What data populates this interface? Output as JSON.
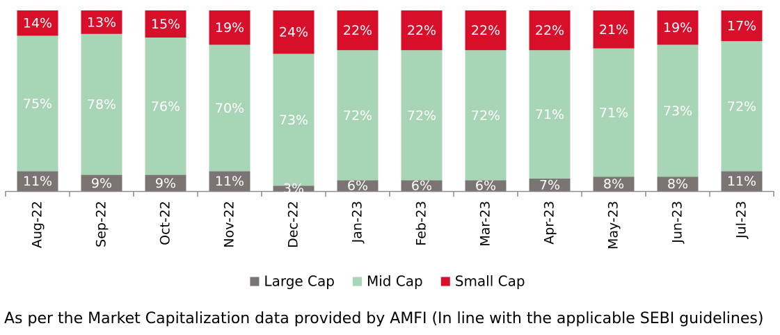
{
  "chart_data": {
    "type": "bar",
    "stacked": true,
    "categories": [
      "Aug-22",
      "Sep-22",
      "Oct-22",
      "Nov-22",
      "Dec-22",
      "Jan-23",
      "Feb-23",
      "Mar-23",
      "Apr-23",
      "May-23",
      "Jun-23",
      "Jul-23"
    ],
    "series": [
      {
        "name": "Large Cap",
        "color": "#7a7573",
        "label_color": "#ffffff",
        "values": [
          11,
          9,
          9,
          11,
          3,
          6,
          6,
          6,
          7,
          8,
          8,
          11
        ],
        "labels": [
          "11%",
          "9%",
          "9%",
          "11%",
          "3%",
          "6%",
          "6%",
          "6%",
          "7%",
          "8%",
          "8%",
          "11%"
        ]
      },
      {
        "name": "Mid Cap",
        "color": "#a8d5b6",
        "label_color": "#ffffff",
        "values": [
          75,
          78,
          76,
          70,
          73,
          72,
          72,
          72,
          71,
          71,
          73,
          72
        ],
        "labels": [
          "75%",
          "78%",
          "76%",
          "70%",
          "73%",
          "72%",
          "72%",
          "72%",
          "71%",
          "71%",
          "73%",
          "72%"
        ]
      },
      {
        "name": "Small Cap",
        "color": "#d80f2a",
        "label_color": "#ffffff",
        "values": [
          14,
          13,
          15,
          19,
          24,
          22,
          22,
          22,
          22,
          21,
          19,
          17
        ],
        "labels": [
          "14%",
          "13%",
          "15%",
          "19%",
          "24%",
          "22%",
          "22%",
          "22%",
          "22%",
          "21%",
          "19%",
          "17%"
        ]
      }
    ],
    "legend_position": "bottom",
    "grid": false
  },
  "footnote": "As per the Market Capitalization data provided by AMFI (In line with the applicable SEBI guidelines)"
}
